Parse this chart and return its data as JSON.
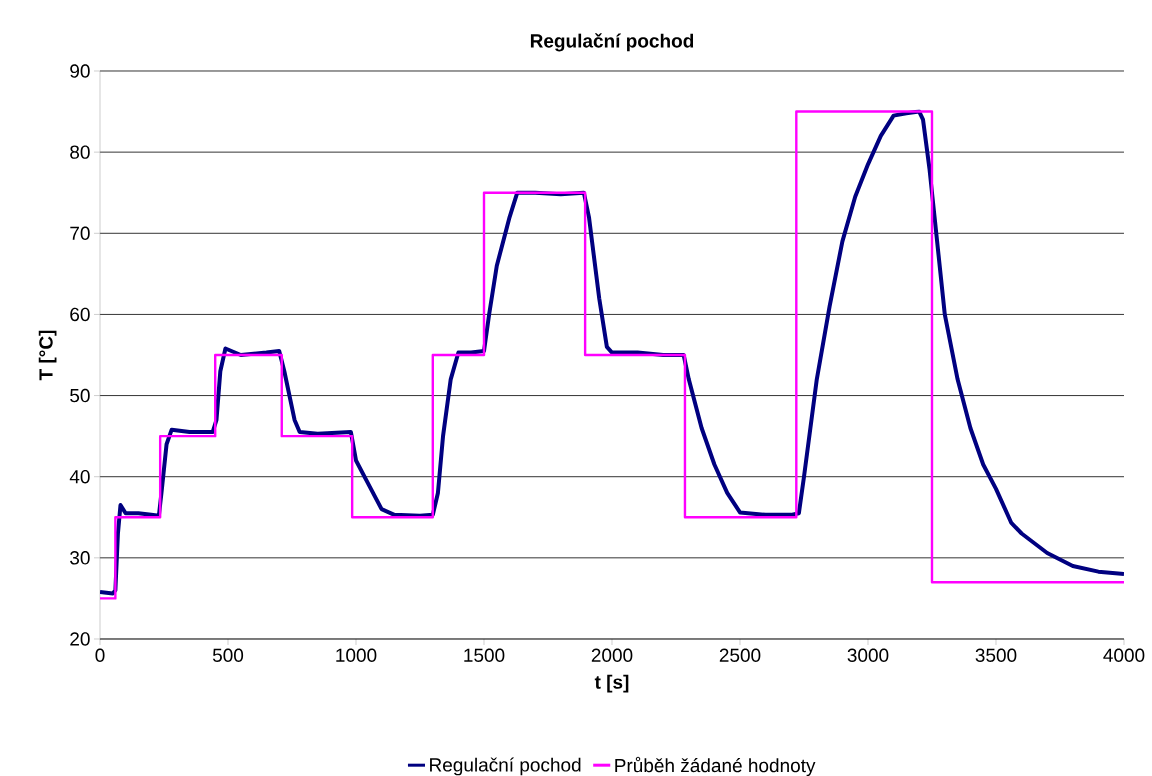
{
  "chart_data": {
    "type": "line",
    "title": "Regulační pochod",
    "xlabel": "t [s]",
    "ylabel": "T [°C]",
    "xlim": [
      0,
      4000
    ],
    "ylim": [
      20,
      90
    ],
    "xticks": [
      0,
      500,
      1000,
      1500,
      2000,
      2500,
      3000,
      3500,
      4000
    ],
    "yticks": [
      20,
      30,
      40,
      50,
      60,
      70,
      80,
      90
    ],
    "grid": "y",
    "legend": "bottom",
    "marker": "none",
    "line_style": "solid",
    "series": [
      {
        "name": "Regulační pochod",
        "color": "#000080",
        "x": [
          0,
          50,
          60,
          70,
          80,
          100,
          150,
          200,
          230,
          240,
          260,
          280,
          350,
          440,
          455,
          470,
          490,
          550,
          650,
          700,
          720,
          760,
          780,
          850,
          980,
          1000,
          1050,
          1100,
          1150,
          1250,
          1300,
          1320,
          1340,
          1370,
          1400,
          1450,
          1500,
          1520,
          1550,
          1600,
          1630,
          1700,
          1800,
          1890,
          1910,
          1950,
          1980,
          2000,
          2100,
          2200,
          2280,
          2300,
          2350,
          2400,
          2450,
          2500,
          2600,
          2700,
          2730,
          2750,
          2800,
          2850,
          2900,
          2950,
          3000,
          3050,
          3100,
          3150,
          3200,
          3215,
          3240,
          3260,
          3300,
          3350,
          3400,
          3450,
          3500,
          3560,
          3600,
          3700,
          3800,
          3900,
          4000
        ],
        "values": [
          25.8,
          25.6,
          26,
          33,
          36.5,
          35.5,
          35.5,
          35.3,
          35.2,
          38,
          44,
          45.8,
          45.5,
          45.5,
          47,
          53,
          55.8,
          55,
          55.3,
          55.5,
          53,
          47,
          45.5,
          45.3,
          45.5,
          42,
          39,
          36,
          35.3,
          35.2,
          35.3,
          38,
          45,
          52,
          55.3,
          55.3,
          55.5,
          60,
          66,
          72,
          75,
          75,
          74.8,
          75,
          72,
          62,
          56,
          55.3,
          55.3,
          55,
          55,
          52,
          46,
          41.5,
          38,
          35.6,
          35.3,
          35.3,
          35.5,
          40,
          52,
          61,
          69,
          74.5,
          78.5,
          82,
          84.5,
          84.8,
          85,
          84,
          78,
          72,
          60,
          52,
          46,
          41.5,
          38.5,
          34.3,
          33,
          30.6,
          29,
          28.3,
          28
        ]
      },
      {
        "name": "Průběh žádané hodnoty",
        "type": "step",
        "color": "#ff00ff",
        "x": [
          0,
          60,
          235,
          450,
          710,
          985,
          1300,
          1500,
          1895,
          2285,
          2720,
          3250,
          4000
        ],
        "values": [
          25,
          35,
          45,
          55,
          45,
          35,
          55,
          75,
          55,
          35,
          85,
          27,
          27
        ]
      }
    ]
  }
}
